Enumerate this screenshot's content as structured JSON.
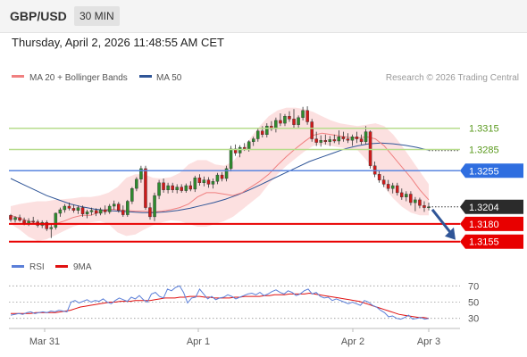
{
  "header": {
    "symbol": "GBP/USD",
    "timeframe": "30 MIN",
    "datetime": "Thursday, April 2, 2026 11:48:55 AM CET"
  },
  "legend": {
    "items": [
      {
        "label": "MA 20 + Bollinger Bands",
        "color": "#f08080"
      },
      {
        "label": "MA 50",
        "color": "#2f5597"
      }
    ],
    "credit": "Research © 2026 Trading Central"
  },
  "chart_data": [
    {
      "type": "candlestick",
      "ylim": [
        1.3137,
        1.337
      ],
      "x_labels": [
        "Mar 31",
        "Apr 1",
        "Apr 2",
        "Apr 3"
      ],
      "ohlc": [
        [
          1.3192,
          1.3194,
          1.3183,
          1.3186
        ],
        [
          1.3186,
          1.3191,
          1.3182,
          1.3189
        ],
        [
          1.3189,
          1.3193,
          1.3183,
          1.3185
        ],
        [
          1.3185,
          1.3189,
          1.3178,
          1.3181
        ],
        [
          1.3181,
          1.3188,
          1.3177,
          1.3184
        ],
        [
          1.3184,
          1.319,
          1.318,
          1.3183
        ],
        [
          1.3183,
          1.3186,
          1.3175,
          1.3178
        ],
        [
          1.3178,
          1.3185,
          1.3174,
          1.3182
        ],
        [
          1.3182,
          1.3185,
          1.317,
          1.3173
        ],
        [
          1.3173,
          1.318,
          1.316,
          1.3175
        ],
        [
          1.3175,
          1.3196,
          1.3172,
          1.3195
        ],
        [
          1.3195,
          1.3203,
          1.319,
          1.32
        ],
        [
          1.32,
          1.3208,
          1.3196,
          1.3205
        ],
        [
          1.3205,
          1.321,
          1.3199,
          1.3202
        ],
        [
          1.3202,
          1.3207,
          1.3196,
          1.3199
        ],
        [
          1.3199,
          1.3206,
          1.3194,
          1.3203
        ],
        [
          1.3203,
          1.3206,
          1.319,
          1.3194
        ],
        [
          1.3194,
          1.32,
          1.3188,
          1.3197
        ],
        [
          1.3197,
          1.3203,
          1.3192,
          1.3199
        ],
        [
          1.3199,
          1.3202,
          1.3191,
          1.3195
        ],
        [
          1.3195,
          1.3203,
          1.3192,
          1.32
        ],
        [
          1.32,
          1.3206,
          1.3193,
          1.3197
        ],
        [
          1.3197,
          1.3208,
          1.3194,
          1.3205
        ],
        [
          1.3205,
          1.3213,
          1.32,
          1.3208
        ],
        [
          1.3208,
          1.3211,
          1.3196,
          1.3199
        ],
        [
          1.3199,
          1.3206,
          1.319,
          1.3193
        ],
        [
          1.3193,
          1.3214,
          1.319,
          1.3212
        ],
        [
          1.3212,
          1.3232,
          1.3208,
          1.323
        ],
        [
          1.323,
          1.3246,
          1.3226,
          1.3243
        ],
        [
          1.3243,
          1.3262,
          1.3238,
          1.3258
        ],
        [
          1.3258,
          1.3262,
          1.32,
          1.3203
        ],
        [
          1.3203,
          1.321,
          1.3186,
          1.319
        ],
        [
          1.319,
          1.3224,
          1.3184,
          1.322
        ],
        [
          1.322,
          1.3242,
          1.3215,
          1.3238
        ],
        [
          1.3238,
          1.3244,
          1.3224,
          1.3228
        ],
        [
          1.3228,
          1.3238,
          1.3223,
          1.3234
        ],
        [
          1.3234,
          1.3238,
          1.3224,
          1.3228
        ],
        [
          1.3228,
          1.3236,
          1.3223,
          1.3232
        ],
        [
          1.3232,
          1.3236,
          1.3224,
          1.3227
        ],
        [
          1.3227,
          1.3237,
          1.3224,
          1.3234
        ],
        [
          1.3234,
          1.324,
          1.3226,
          1.3229
        ],
        [
          1.3229,
          1.3248,
          1.3225,
          1.3245
        ],
        [
          1.3245,
          1.325,
          1.3234,
          1.3238
        ],
        [
          1.3238,
          1.3247,
          1.3233,
          1.3242
        ],
        [
          1.3242,
          1.3246,
          1.3231,
          1.3236
        ],
        [
          1.3236,
          1.3244,
          1.323,
          1.324
        ],
        [
          1.324,
          1.3252,
          1.3236,
          1.3249
        ],
        [
          1.3249,
          1.3253,
          1.324,
          1.3244
        ],
        [
          1.3244,
          1.3262,
          1.324,
          1.3258
        ],
        [
          1.3258,
          1.329,
          1.3254,
          1.3286
        ],
        [
          1.3286,
          1.3292,
          1.3276,
          1.328
        ],
        [
          1.328,
          1.3291,
          1.3274,
          1.3288
        ],
        [
          1.3288,
          1.3294,
          1.3283,
          1.3286
        ],
        [
          1.3286,
          1.3298,
          1.3282,
          1.3296
        ],
        [
          1.3296,
          1.3303,
          1.329,
          1.33
        ],
        [
          1.33,
          1.3314,
          1.3296,
          1.3311
        ],
        [
          1.3311,
          1.3318,
          1.3302,
          1.3306
        ],
        [
          1.3306,
          1.3322,
          1.3302,
          1.3318
        ],
        [
          1.3318,
          1.3325,
          1.3311,
          1.3314
        ],
        [
          1.3314,
          1.333,
          1.3309,
          1.3326
        ],
        [
          1.3326,
          1.3336,
          1.3318,
          1.3322
        ],
        [
          1.3322,
          1.3335,
          1.3318,
          1.3332
        ],
        [
          1.3332,
          1.3339,
          1.3324,
          1.3328
        ],
        [
          1.3328,
          1.3342,
          1.3315,
          1.332
        ],
        [
          1.332,
          1.3333,
          1.3316,
          1.333
        ],
        [
          1.333,
          1.3345,
          1.3326,
          1.334
        ],
        [
          1.334,
          1.3346,
          1.332,
          1.3324
        ],
        [
          1.3324,
          1.3328,
          1.3296,
          1.33
        ],
        [
          1.33,
          1.331,
          1.329,
          1.3295
        ],
        [
          1.3295,
          1.3305,
          1.3289,
          1.3298
        ],
        [
          1.3298,
          1.3306,
          1.3292,
          1.3296
        ],
        [
          1.3296,
          1.3304,
          1.329,
          1.3299
        ],
        [
          1.3299,
          1.3306,
          1.3294,
          1.3297
        ],
        [
          1.3297,
          1.3312,
          1.3292,
          1.3303
        ],
        [
          1.3303,
          1.331,
          1.3296,
          1.33
        ],
        [
          1.33,
          1.3308,
          1.3294,
          1.3298
        ],
        [
          1.3298,
          1.3306,
          1.329,
          1.3303
        ],
        [
          1.3303,
          1.331,
          1.3294,
          1.33
        ],
        [
          1.33,
          1.3306,
          1.3292,
          1.3296
        ],
        [
          1.3296,
          1.3318,
          1.3292,
          1.331
        ],
        [
          1.331,
          1.3312,
          1.3258,
          1.3262
        ],
        [
          1.3262,
          1.3268,
          1.3246,
          1.325
        ],
        [
          1.325,
          1.3256,
          1.3238,
          1.3242
        ],
        [
          1.3242,
          1.3248,
          1.3232,
          1.3236
        ],
        [
          1.3236,
          1.3242,
          1.3226,
          1.323
        ],
        [
          1.323,
          1.3238,
          1.3223,
          1.3234
        ],
        [
          1.3234,
          1.3238,
          1.322,
          1.3224
        ],
        [
          1.3224,
          1.323,
          1.3214,
          1.3218
        ],
        [
          1.3218,
          1.3226,
          1.3212,
          1.3222
        ],
        [
          1.3222,
          1.3226,
          1.3206,
          1.321
        ],
        [
          1.321,
          1.3218,
          1.3198,
          1.3214
        ],
        [
          1.3214,
          1.3217,
          1.3202,
          1.3206
        ],
        [
          1.3206,
          1.3212,
          1.3197,
          1.3203
        ],
        [
          1.3203,
          1.321,
          1.3199,
          1.3204
        ]
      ],
      "ma20": [
        1.3192,
        1.3188,
        1.3184,
        1.318,
        1.3178,
        1.318,
        1.3184,
        1.3189,
        1.3192,
        1.3192,
        1.3197,
        1.3201,
        1.32,
        1.3199,
        1.3198,
        1.3198,
        1.3197,
        1.3198,
        1.32,
        1.3203,
        1.3208,
        1.3218,
        1.3224,
        1.3224,
        1.3222,
        1.322,
        1.3224,
        1.3232,
        1.324,
        1.325,
        1.3263,
        1.3275,
        1.3286,
        1.3296,
        1.3305,
        1.3308,
        1.3306,
        1.3304,
        1.3302,
        1.3301,
        1.3303,
        1.33,
        1.329,
        1.3275,
        1.326,
        1.3245,
        1.3228,
        1.3214
      ],
      "bb_upper": [
        1.3205,
        1.3208,
        1.321,
        1.3212,
        1.3212,
        1.3214,
        1.3215,
        1.3216,
        1.3218,
        1.3218,
        1.322,
        1.3224,
        1.3232,
        1.3245,
        1.325,
        1.325,
        1.3245,
        1.3244,
        1.3246,
        1.3252,
        1.3264,
        1.327,
        1.327,
        1.3264,
        1.3262,
        1.3268,
        1.3284,
        1.3302,
        1.3318,
        1.3332,
        1.334,
        1.3344,
        1.3344,
        1.3342,
        1.3338,
        1.3332,
        1.3326,
        1.3322,
        1.332,
        1.3318,
        1.332,
        1.3322,
        1.3318,
        1.3306,
        1.329,
        1.3272,
        1.3254,
        1.3236
      ],
      "bb_lower": [
        1.318,
        1.3172,
        1.3162,
        1.3156,
        1.3158,
        1.3164,
        1.317,
        1.3176,
        1.318,
        1.3182,
        1.3184,
        1.318,
        1.3168,
        1.3163,
        1.3165,
        1.3172,
        1.3178,
        1.3182,
        1.3185,
        1.3184,
        1.318,
        1.3176,
        1.3176,
        1.318,
        1.3184,
        1.319,
        1.32,
        1.321,
        1.322,
        1.3236,
        1.325,
        1.3262,
        1.3272,
        1.3282,
        1.329,
        1.3292,
        1.329,
        1.3288,
        1.3286,
        1.3284,
        1.327,
        1.3252,
        1.3232,
        1.3216,
        1.3204,
        1.3196,
        1.3192,
        1.3192
      ],
      "ma50": [
        1.3244,
        1.3236,
        1.3228,
        1.322,
        1.3214,
        1.3208,
        1.3204,
        1.3201,
        1.3199,
        1.3198,
        1.3197,
        1.3196,
        1.3196,
        1.3197,
        1.3199,
        1.3202,
        1.3206,
        1.321,
        1.3215,
        1.3221,
        1.3228,
        1.3236,
        1.3244,
        1.3252,
        1.326,
        1.3268,
        1.3274,
        1.328,
        1.3286,
        1.329,
        1.3293,
        1.3294,
        1.3293,
        1.3291,
        1.3288,
        1.3284
      ],
      "levels": [
        {
          "value": 1.3315,
          "label": "1.3315",
          "kind": "resistance"
        },
        {
          "value": 1.3285,
          "label": "1.3285",
          "kind": "resistance"
        },
        {
          "value": 1.3255,
          "label": "1.3255",
          "kind": "pivot"
        },
        {
          "value": 1.318,
          "label": "1.3180",
          "kind": "support"
        },
        {
          "value": 1.3155,
          "label": "1.3155",
          "kind": "support"
        }
      ],
      "last_price": {
        "value": 1.3204,
        "label": "1.3204"
      },
      "forecast_target": 1.3155
    },
    {
      "type": "line",
      "legend": [
        {
          "label": "RSI",
          "color": "#5b7fd8"
        },
        {
          "label": "9MA",
          "color": "#e01010"
        }
      ],
      "ylim": [
        22,
        78
      ],
      "y_ticks": [
        {
          "value": 70,
          "label": "70"
        },
        {
          "value": 50,
          "label": "50"
        },
        {
          "value": 30,
          "label": "30"
        }
      ],
      "rsi": [
        34,
        35,
        36,
        35,
        37,
        38,
        36,
        37,
        38,
        37,
        39,
        38,
        40,
        39,
        38,
        50,
        52,
        49,
        51,
        53,
        50,
        52,
        51,
        54,
        50,
        48,
        52,
        55,
        53,
        51,
        56,
        54,
        58,
        53,
        50,
        60,
        62,
        57,
        55,
        66,
        64,
        68,
        70,
        62,
        49,
        55,
        56,
        66,
        60,
        54,
        57,
        53,
        55,
        56,
        59,
        57,
        54,
        56,
        58,
        60,
        61,
        59,
        62,
        58,
        60,
        63,
        65,
        62,
        60,
        64,
        62,
        58,
        60,
        64,
        66,
        60,
        62,
        57,
        55,
        56,
        52,
        54,
        52,
        50,
        48,
        50,
        48,
        46,
        52,
        50,
        46,
        44,
        40,
        37,
        32,
        33,
        30,
        29,
        31,
        34,
        29,
        30,
        31,
        29,
        30
      ],
      "ma9": [
        36,
        36,
        36,
        36,
        36,
        37,
        37,
        37,
        37,
        37,
        38,
        39,
        40,
        42,
        44,
        45,
        46,
        47,
        48,
        49,
        50,
        50,
        51,
        51,
        51,
        52,
        52,
        52,
        52,
        53,
        54,
        55,
        55,
        55,
        56,
        56,
        57,
        57,
        57,
        56,
        56,
        55,
        55,
        55,
        55,
        56,
        56,
        57,
        57,
        57,
        57,
        58,
        58,
        59,
        59,
        59,
        60,
        60,
        60,
        60,
        61,
        60,
        59,
        58,
        57,
        56,
        55,
        54,
        53,
        52,
        51,
        49,
        47,
        45,
        43,
        41,
        39,
        37,
        35,
        34,
        33,
        32,
        31,
        31,
        30
      ]
    }
  ]
}
